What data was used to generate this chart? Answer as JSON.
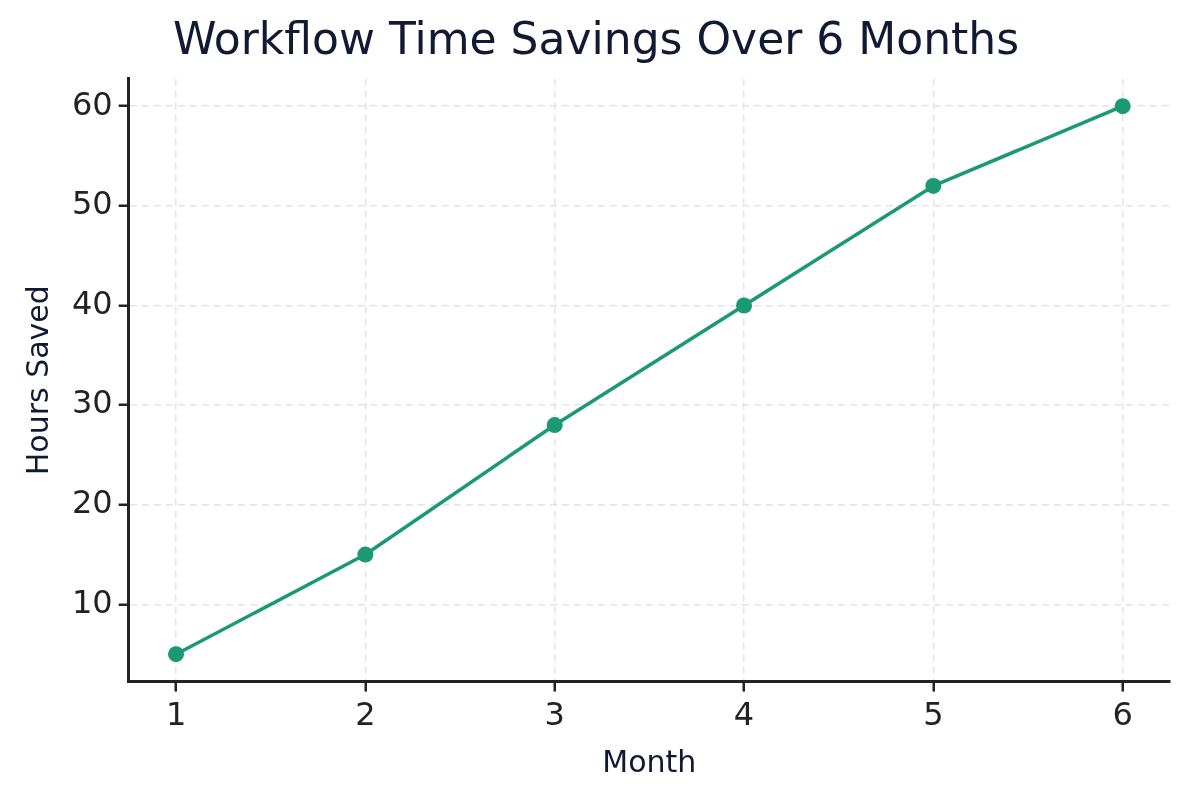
{
  "chart_data": {
    "type": "line",
    "title": "Workflow Time Savings Over 6 Months",
    "xlabel": "Month",
    "ylabel": "Hours Saved",
    "x": [
      1,
      2,
      3,
      4,
      5,
      6
    ],
    "series": [
      {
        "color": "#1b9874",
        "values": [
          5,
          15,
          28,
          40,
          52,
          60
        ]
      }
    ],
    "xlim": [
      0.75,
      6.25
    ],
    "ylim": [
      2.25,
      62.75
    ],
    "xticks": [
      1,
      2,
      3,
      4,
      5,
      6
    ],
    "yticks": [
      10,
      20,
      30,
      40,
      50,
      60
    ],
    "grid": true,
    "marker": "circle",
    "line_style": "solid"
  }
}
